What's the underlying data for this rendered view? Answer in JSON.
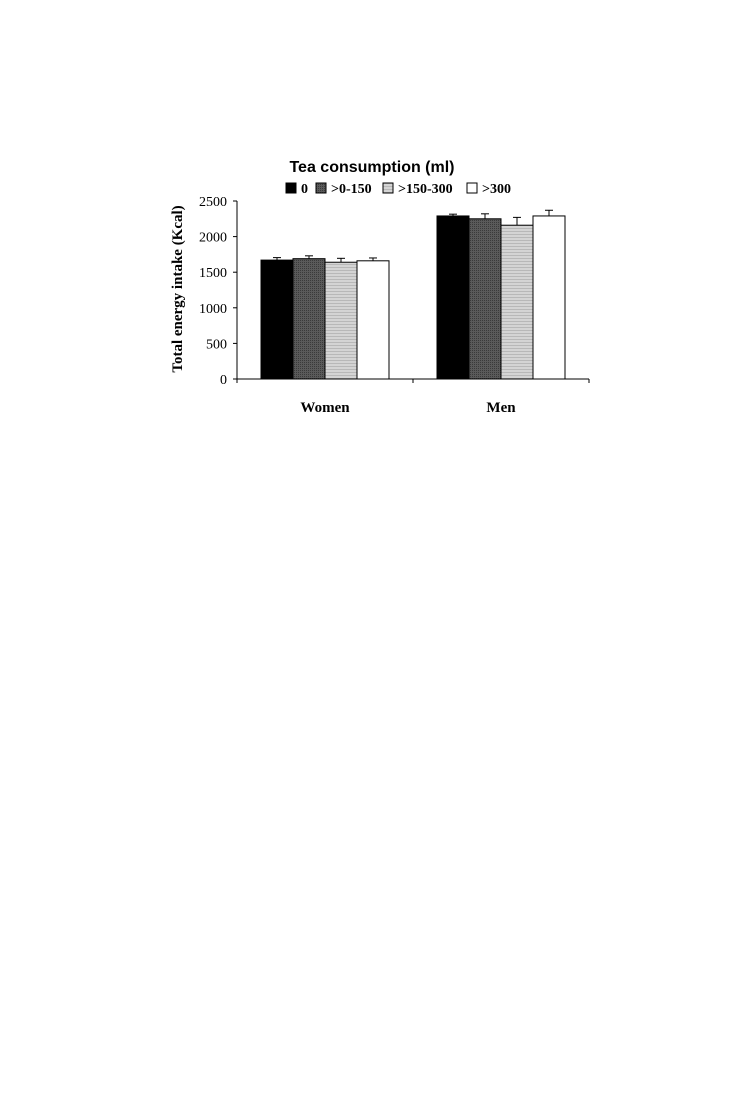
{
  "chart_data": {
    "type": "bar",
    "title": "Tea consumption (ml)",
    "xlabel": "",
    "ylabel": "Total energy intake (Kcal)",
    "categories": [
      "Women",
      "Men"
    ],
    "ylim": [
      0,
      2500
    ],
    "yticks": [
      "0",
      "500",
      "1000",
      "1500",
      "2000",
      "2500"
    ],
    "grid": false,
    "legend_position": "top",
    "series": [
      {
        "name": "0",
        "values": [
          1670,
          2290
        ],
        "errors": [
          35,
          25
        ],
        "color": "#000000"
      },
      {
        "name": ">0-150",
        "values": [
          1690,
          2250
        ],
        "errors": [
          40,
          70
        ],
        "color": "#555555"
      },
      {
        "name": ">150-300",
        "values": [
          1640,
          2160
        ],
        "errors": [
          55,
          110
        ],
        "color": "#c8c8c8"
      },
      {
        "name": ">300",
        "values": [
          1660,
          2290
        ],
        "errors": [
          40,
          80
        ],
        "color": "#ffffff"
      }
    ]
  }
}
